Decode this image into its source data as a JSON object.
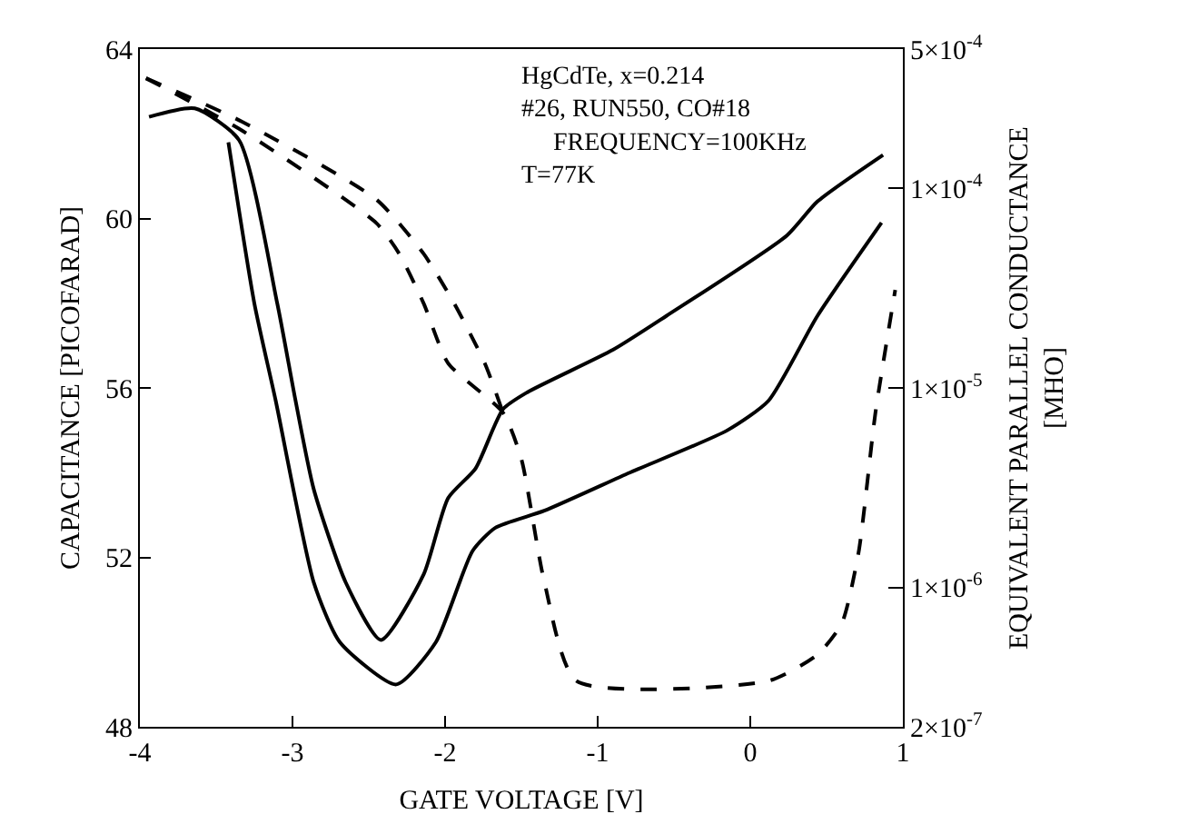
{
  "chart_data": {
    "type": "line",
    "xlabel": "GATE VOLTAGE [V]",
    "ylabel": "CAPACITANCE [PICOFARAD]",
    "y2label": "EQUIVALENT PARALLEL CONDUCTANCE\n[MHO]",
    "xlim": [
      -4,
      1
    ],
    "xticks": [
      -4,
      -3,
      -2,
      -1,
      0,
      1
    ],
    "ylim": [
      48,
      64
    ],
    "yticks": [
      48,
      52,
      56,
      60,
      64
    ],
    "y2lim": [
      2e-07,
      0.0005
    ],
    "y2ticks": [
      {
        "value": 0.0005,
        "label": "5×10$^{-4}$"
      },
      {
        "value": 0.0001,
        "label": "1×10$^{-4}$"
      },
      {
        "value": 1e-05,
        "label": "1×10$^{-5}$"
      },
      {
        "value": 1e-06,
        "label": "1×10$^{-6}$"
      },
      {
        "value": 2e-07,
        "label": "2×10$^{-7}$"
      }
    ],
    "log": "y2",
    "marker": "none",
    "annotations": [
      "HgCdTe, x=0.214\n#26, RUN550, CO#18\n     FREQUENCY=100KHz\nT=77K"
    ],
    "series": [
      {
        "color": "#000000",
        "line_style": "solid",
        "x": [
          0.87,
          0.44,
          0.24,
          -0.55,
          -0.9,
          -1.46,
          -1.62,
          -1.8,
          -1.98,
          -2.14,
          -2.42,
          -2.65,
          -2.86,
          -2.98,
          -3.1,
          -3.35,
          -3.64,
          -3.94
        ],
        "values": [
          61.5,
          60.4,
          59.6,
          57.7,
          56.9,
          55.9,
          55.5,
          54.1,
          53.4,
          51.6,
          50.05,
          51.4,
          53.6,
          55.7,
          58.0,
          61.85,
          62.6,
          62.4
        ]
      },
      {
        "color": "#000000",
        "line_style": "solid",
        "x": [
          -3.42,
          -3.25,
          -3.11,
          -2.86,
          -2.69,
          -2.32,
          -2.06,
          -1.82,
          -1.67,
          -1.35,
          -0.79,
          -0.15,
          0.12,
          0.44,
          0.86
        ],
        "values": [
          61.8,
          58.0,
          55.7,
          51.4,
          50.0,
          49.0,
          50.0,
          52.15,
          52.7,
          53.1,
          54.0,
          55.0,
          55.7,
          57.7,
          59.9
        ]
      },
      {
        "color": "#000000",
        "line_style": "dashed",
        "axis": "y2",
        "x": [
          -3.96,
          -3.33,
          -2.45,
          -2.14,
          -1.94,
          -1.74,
          -1.62
        ],
        "values": [
          0.000357,
          0.000216,
          8.8e-05,
          4.7e-05,
          2.65e-05,
          1.33e-05,
          7.5e-06
        ]
      },
      {
        "color": "#000000",
        "line_style": "dashed",
        "axis": "y2",
        "x": [
          -3.96,
          -3.33,
          -2.45,
          -2.3,
          -2.14,
          -1.98,
          -1.62,
          -1.5,
          -1.35,
          -1.14,
          0.12,
          0.44,
          0.6,
          0.71,
          0.82,
          0.95
        ],
        "values": [
          0.000357,
          0.000195,
          6.7e-05,
          4.7e-05,
          2.65e-05,
          1.33e-05,
          7.5e-06,
          4.4e-06,
          1.07e-06,
          3.4e-07,
          3.4e-07,
          4.6e-07,
          6.6e-07,
          1.5e-06,
          7.5e-06,
          3.1e-05
        ]
      }
    ]
  }
}
